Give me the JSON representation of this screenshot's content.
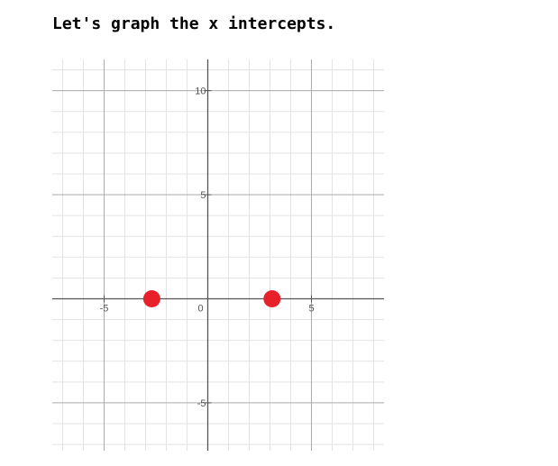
{
  "heading": "Let's graph the x intercepts.",
  "chart_data": {
    "type": "scatter",
    "title": "",
    "xlabel": "",
    "ylabel": "",
    "xlim": [
      -7.5,
      8.5
    ],
    "ylim": [
      -7.3,
      11.5
    ],
    "grid": true,
    "minor_step": 1,
    "major_step": 5,
    "x_ticks": [
      {
        "value": -5,
        "label": "-5"
      },
      {
        "value": 0,
        "label": "0"
      },
      {
        "value": 5,
        "label": "5"
      }
    ],
    "y_ticks": [
      {
        "value": 10,
        "label": "10"
      },
      {
        "value": 5,
        "label": "5"
      },
      {
        "value": -5,
        "label": "-5"
      }
    ],
    "points": [
      {
        "x": -2.7,
        "y": 0
      },
      {
        "x": 3.1,
        "y": 0
      }
    ],
    "point_color": "#e8202a",
    "axis_color": "#555555",
    "major_grid_color": "#aaaaaa",
    "minor_grid_color": "#e3e3e3"
  }
}
